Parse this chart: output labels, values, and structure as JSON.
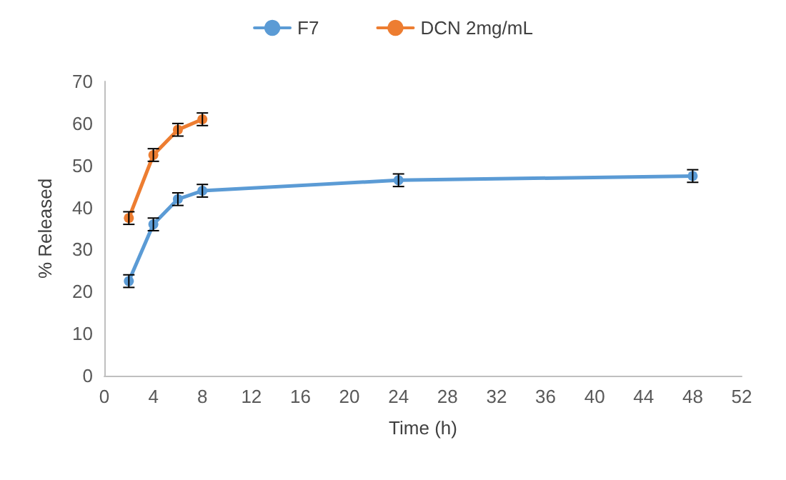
{
  "chart_data": {
    "type": "line",
    "xlabel": "Time (h)",
    "ylabel": "% Released",
    "xlim": [
      0,
      52
    ],
    "xticks": [
      0,
      4,
      8,
      12,
      16,
      20,
      24,
      28,
      32,
      36,
      40,
      44,
      48,
      52
    ],
    "ylim": [
      0,
      70
    ],
    "yticks": [
      0,
      10,
      20,
      30,
      40,
      50,
      60,
      70
    ],
    "grid": false,
    "legend": "top",
    "marker": "circle",
    "line_style": "solid",
    "series": [
      {
        "name": "F7",
        "color": "#5b9bd5",
        "x": [
          2,
          4,
          6,
          8,
          24,
          48
        ],
        "values": [
          22.5,
          36,
          42,
          44,
          46.5,
          47.5
        ],
        "errors": [
          1.5,
          1.5,
          1.5,
          1.5,
          1.5,
          1.5
        ]
      },
      {
        "name": "DCN 2mg/mL",
        "color": "#ed7d31",
        "x": [
          2,
          4,
          6,
          8
        ],
        "values": [
          37.5,
          52.5,
          58.5,
          61
        ],
        "errors": [
          1.5,
          1.5,
          1.5,
          1.5
        ]
      }
    ]
  }
}
